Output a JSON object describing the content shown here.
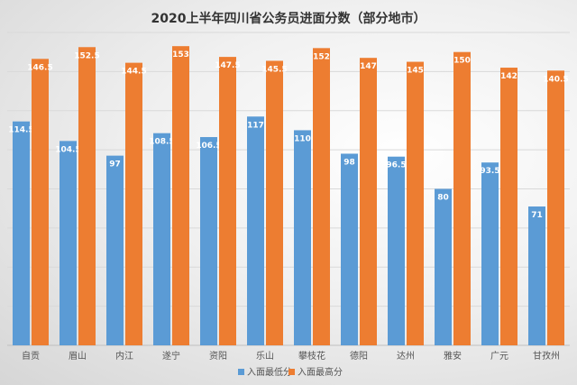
{
  "chart_data": {
    "type": "bar",
    "title": "2020上半年四川省公务员进面分数（部分地市）",
    "categories": [
      "自贡",
      "眉山",
      "内江",
      "遂宁",
      "资阳",
      "乐山",
      "攀枝花",
      "德阳",
      "达州",
      "雅安",
      "广元",
      "甘孜州"
    ],
    "series": [
      {
        "name": "入面最低分",
        "color": "#5b9bd5",
        "values": [
          114.5,
          104.5,
          97,
          108.5,
          106.5,
          117,
          110,
          98,
          96.5,
          80,
          93.5,
          71
        ]
      },
      {
        "name": "入面最高分",
        "color": "#ed7d31",
        "values": [
          146.5,
          152.5,
          144.5,
          153,
          147.5,
          145.5,
          152,
          147,
          145,
          150,
          142,
          140.5
        ]
      }
    ],
    "ylim": [
      0,
      160
    ],
    "ygrid_step": 20,
    "grid": true,
    "ytick_labels_shown": false,
    "data_labels": true,
    "legend": "bottom"
  }
}
